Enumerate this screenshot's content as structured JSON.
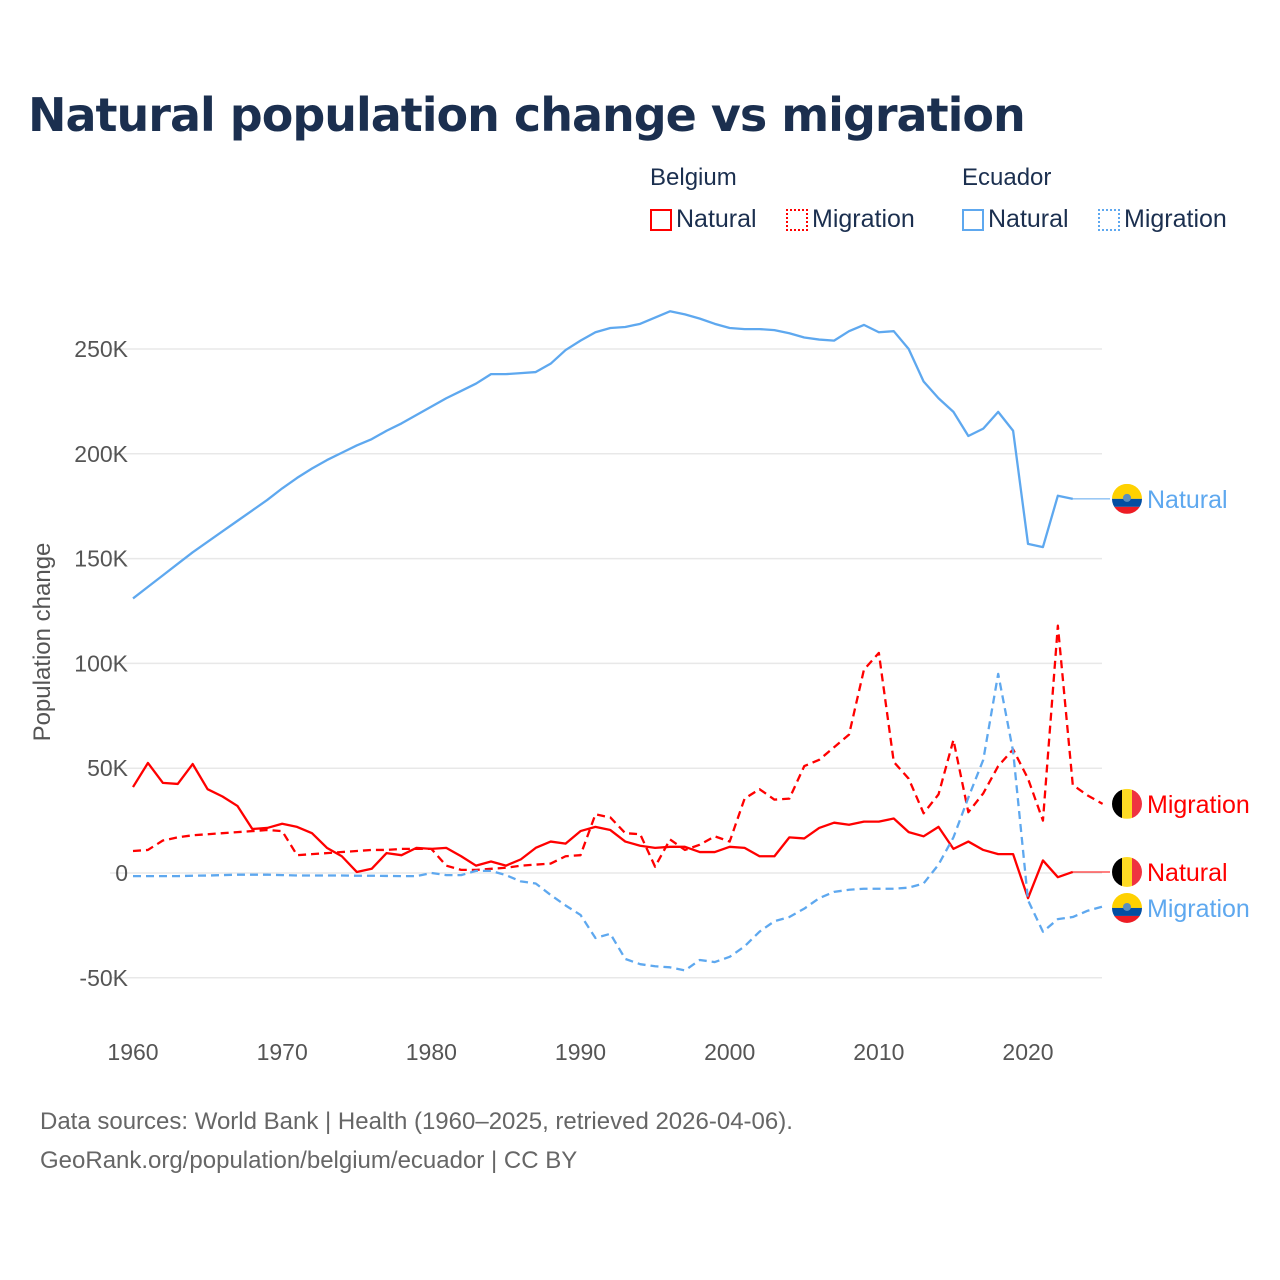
{
  "chart_data": {
    "type": "line",
    "title": "Natural population change vs migration",
    "ylabel": "Population change",
    "xlabel": "",
    "ylim": [
      -70000,
      290000
    ],
    "xlim": [
      1960,
      2025
    ],
    "grid": true,
    "xticks": [
      1960,
      1970,
      1980,
      1990,
      2000,
      2010,
      2020
    ],
    "xtick_labels": [
      "1960",
      "1970",
      "1980",
      "1990",
      "2000",
      "2010",
      "2020"
    ],
    "yticks": [
      -50000,
      0,
      50000,
      100000,
      150000,
      200000,
      250000
    ],
    "ytick_labels": [
      "-50K",
      "0",
      "50K",
      "100K",
      "150K",
      "200K",
      "250K"
    ],
    "legend": {
      "placement": "top-right",
      "groups": [
        {
          "title": "Belgium",
          "items": [
            "Natural",
            "Migration"
          ]
        },
        {
          "title": "Ecuador",
          "items": [
            "Natural",
            "Migration"
          ]
        }
      ]
    },
    "x_start": 1960,
    "series": [
      {
        "name": "Belgium Natural",
        "country": "Belgium",
        "kind": "Natural",
        "color": "#ff0000",
        "dash": false,
        "end_label": "Natural",
        "values": [
          41000,
          52500,
          43000,
          42500,
          52000,
          40000,
          36500,
          32000,
          21000,
          21500,
          23500,
          22000,
          19000,
          12000,
          8000,
          500,
          2000,
          9500,
          8500,
          12000,
          11500,
          12000,
          8000,
          3500,
          5500,
          3500,
          6500,
          12000,
          15000,
          14000,
          20000,
          22000,
          20500,
          15000,
          13000,
          12000,
          12500,
          12500,
          10000,
          10000,
          12500,
          12000,
          8000,
          8000,
          17000,
          16500,
          21500,
          24000,
          23000,
          24500,
          24500,
          26000,
          19500,
          17500,
          22000,
          11500,
          15000,
          11000,
          9000,
          9000,
          -12000,
          6000,
          -2000,
          500
        ]
      },
      {
        "name": "Belgium Migration",
        "country": "Belgium",
        "kind": "Migration",
        "color": "#ff0000",
        "dash": true,
        "end_label": "Migration",
        "values": [
          10500,
          11000,
          15500,
          17000,
          18000,
          18500,
          19000,
          19500,
          20000,
          20500,
          20000,
          8500,
          9000,
          9500,
          10000,
          10500,
          11000,
          11000,
          11500,
          11500,
          11500,
          3500,
          1500,
          1500,
          2000,
          2500,
          3500,
          4000,
          4500,
          8000,
          8500,
          28000,
          26500,
          19000,
          18500,
          3000,
          16000,
          11000,
          13500,
          17500,
          15000,
          35500,
          40000,
          35000,
          35500,
          51000,
          54000,
          60000,
          66000,
          97000,
          105000,
          53000,
          45000,
          28500,
          37500,
          63500,
          29000,
          38000,
          51000,
          59000,
          45000,
          25000,
          118000,
          42000,
          37000,
          33000
        ]
      },
      {
        "name": "Ecuador Natural",
        "country": "Ecuador",
        "kind": "Natural",
        "color": "#5ea8ef",
        "dash": false,
        "end_label": "Natural",
        "values": [
          131000,
          136500,
          142000,
          147500,
          153000,
          158000,
          163000,
          168000,
          173000,
          178000,
          183500,
          188500,
          193000,
          197000,
          200500,
          204000,
          207000,
          211000,
          214500,
          218500,
          222500,
          226500,
          230000,
          233500,
          238000,
          238000,
          238500,
          239000,
          243000,
          249500,
          254000,
          258000,
          260000,
          260500,
          262000,
          265000,
          268000,
          266500,
          264500,
          262000,
          260000,
          259500,
          259500,
          259000,
          257500,
          255500,
          254500,
          254000,
          258500,
          261500,
          258000,
          258500,
          250000,
          234500,
          226500,
          220000,
          208500,
          212000,
          220000,
          211000,
          157000,
          155500,
          180000,
          178500
        ]
      },
      {
        "name": "Ecuador Migration",
        "country": "Ecuador",
        "kind": "Migration",
        "color": "#5ea8ef",
        "dash": true,
        "end_label": "Migration",
        "values": [
          -1500,
          -1500,
          -1500,
          -1500,
          -1300,
          -1200,
          -1000,
          -800,
          -800,
          -800,
          -1000,
          -1200,
          -1200,
          -1200,
          -1200,
          -1300,
          -1300,
          -1400,
          -1500,
          -1500,
          0,
          -1000,
          -1000,
          1000,
          1000,
          -1000,
          -4000,
          -5000,
          -10500,
          -15500,
          -20000,
          -31000,
          -29000,
          -41000,
          -43500,
          -44500,
          -45000,
          -46500,
          -41500,
          -42500,
          -40000,
          -35000,
          -28000,
          -23000,
          -21000,
          -17000,
          -12000,
          -9000,
          -8000,
          -7500,
          -7500,
          -7500,
          -7000,
          -5000,
          4000,
          17000,
          36000,
          54000,
          95000,
          58000,
          -13000,
          -28000,
          -22000,
          -21000,
          -18000,
          -16000
        ]
      }
    ]
  },
  "legend": {
    "belgium": "Belgium",
    "ecuador": "Ecuador",
    "natural": "Natural",
    "migration": "Migration"
  },
  "source": {
    "line1": "Data sources: World Bank | Health (1960–2025, retrieved 2026-04-06).",
    "line2": "GeoRank.org/population/belgium/ecuador | CC BY"
  }
}
